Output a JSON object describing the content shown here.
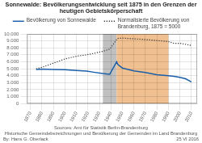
{
  "chart_data": {
    "type": "line",
    "title": [
      "Sonnewalde: Bevölkerungsentwicklung seit 1875 in den Grenzen der",
      "heutigen Gebietskörperschaft"
    ],
    "annotations": [
      "Sources: Amt für Statistik Berlin-Brandenburg",
      "Historische Gemeindebezeichnungen und Bevölkerung der Gemeinden im Land Brandenburg",
      "By: Hans G. Oberlack",
      "25 VI 2016"
    ],
    "x": [
      1875,
      1880,
      1890,
      1900,
      1910,
      1919,
      1925,
      1933,
      1939,
      1945,
      1946,
      1950,
      1960,
      1970,
      1980,
      1990,
      1995,
      2000,
      2005,
      2010
    ],
    "series": [
      {
        "name": "Bevölkerung von Sonnewalde",
        "color": "#1a5fa8",
        "line_style": "solid",
        "values": [
          4900,
          4950,
          4900,
          4850,
          4750,
          4650,
          4500,
          4300,
          4200,
          6000,
          5600,
          5100,
          4700,
          4450,
          4150,
          4000,
          3900,
          3750,
          3550,
          3100
        ]
      },
      {
        "name": "Normalisierte Bevölkerung von\nBrandenburg, 1875 = 5000",
        "color": "#333333",
        "line_style": "dotted",
        "values": [
          5000,
          5200,
          5800,
          6400,
          6800,
          7000,
          7200,
          7500,
          7800,
          9200,
          9350,
          9400,
          9300,
          9200,
          9050,
          8900,
          8650,
          8650,
          8500,
          8350
        ]
      }
    ],
    "bands": [
      {
        "start": 1933,
        "end": 1945,
        "color": "#c0c0c0"
      },
      {
        "start": 1945,
        "end": 1990,
        "color": "#f0c090"
      }
    ],
    "xlim": [
      1867,
      2015
    ],
    "xticks": [
      1870,
      1880,
      1890,
      1900,
      1910,
      1920,
      1930,
      1940,
      1950,
      1960,
      1970,
      1980,
      1990,
      2000,
      2010
    ],
    "ylim": [
      0,
      10000
    ],
    "yticks": [
      0,
      {
        "value": 1000,
        "label": "1.000"
      },
      {
        "value": 2000,
        "label": "2.000"
      },
      {
        "value": 3000,
        "label": "3.000"
      },
      {
        "value": 4000,
        "label": "4.000"
      },
      {
        "value": 5000,
        "label": "5.000"
      },
      {
        "value": 6000,
        "label": "6.000"
      },
      {
        "value": 7000,
        "label": "7.000"
      },
      {
        "value": 8000,
        "label": "8.000"
      },
      {
        "value": 9000,
        "label": "9.000"
      },
      {
        "value": 10000,
        "label": "10.000"
      }
    ],
    "grid": true,
    "legend": "top"
  }
}
